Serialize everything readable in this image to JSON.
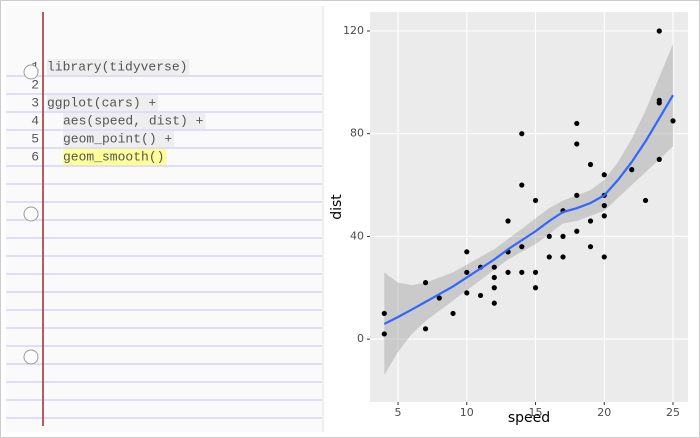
{
  "code": {
    "lines": [
      {
        "number": 1,
        "text": "library(tidyverse)",
        "indent": 0,
        "highlight": "#eeeeee"
      },
      {
        "number": 2
      },
      {
        "number": 3,
        "text": "ggplot(cars) +",
        "indent": 0,
        "highlight": "#eeeeee"
      },
      {
        "number": 4,
        "text": "aes(speed, dist) +",
        "indent": 1,
        "highlight": "#eeeeee"
      },
      {
        "number": 5,
        "text": "geom_point() +",
        "indent": 1,
        "highlight": "#eeeeee"
      },
      {
        "number": 6,
        "text": "geom_smooth()",
        "indent": 1,
        "highlight": "#ffff99"
      }
    ]
  },
  "chart_data": {
    "type": "scatter",
    "x_label": "speed",
    "y_label": "dist",
    "xlim": [
      2.96,
      26.09
    ],
    "ylim": [
      -24.5,
      127.4
    ],
    "xticks": [
      5,
      10,
      15,
      20,
      25
    ],
    "yticks": [
      0,
      40,
      80,
      120
    ],
    "grid": true,
    "points": {
      "color": "#000000",
      "x": [
        4,
        4,
        7,
        7,
        8,
        9,
        10,
        10,
        10,
        11,
        11,
        12,
        12,
        12,
        12,
        13,
        13,
        13,
        13,
        14,
        14,
        14,
        14,
        15,
        15,
        15,
        16,
        16,
        17,
        17,
        17,
        18,
        18,
        18,
        18,
        19,
        19,
        19,
        20,
        20,
        20,
        20,
        20,
        22,
        23,
        24,
        24,
        24,
        24,
        25
      ],
      "values": [
        2,
        10,
        4,
        22,
        16,
        10,
        18,
        26,
        34,
        17,
        28,
        14,
        20,
        24,
        28,
        26,
        34,
        34,
        46,
        26,
        36,
        60,
        80,
        20,
        26,
        54,
        32,
        40,
        32,
        40,
        50,
        42,
        56,
        76,
        84,
        36,
        46,
        68,
        32,
        48,
        52,
        56,
        64,
        66,
        54,
        70,
        92,
        93,
        120,
        85
      ]
    },
    "smooth": {
      "color": "#3366ff",
      "band_color": "#999999",
      "x": [
        4,
        5,
        6,
        7,
        8,
        9,
        10,
        11,
        12,
        13,
        14,
        15,
        16,
        17,
        18,
        19,
        20,
        21,
        22,
        23,
        24,
        25
      ],
      "values": [
        5.9,
        8.6,
        11.5,
        14.5,
        17.5,
        20.5,
        24,
        27.5,
        31,
        35,
        38.5,
        42,
        46,
        49.5,
        51,
        53,
        56,
        62,
        69,
        77,
        86,
        95
      ],
      "lower": [
        -14,
        -5,
        2,
        7,
        11,
        15,
        19,
        23,
        27,
        31,
        34,
        37,
        41,
        45,
        46,
        48,
        50,
        55,
        60,
        65,
        70,
        75
      ],
      "upper": [
        26,
        22,
        21,
        22,
        24,
        26,
        29,
        32,
        35,
        39,
        43,
        47,
        51,
        54,
        56,
        58,
        62,
        69,
        78,
        89,
        102,
        115
      ]
    }
  }
}
